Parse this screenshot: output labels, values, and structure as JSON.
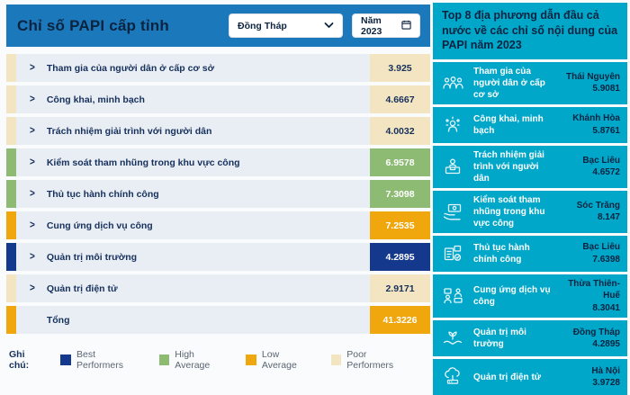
{
  "left_panel": {
    "title": "Chỉ số PAPI cấp tỉnh",
    "province_select": {
      "value": "Đồng Tháp"
    },
    "year_select": {
      "value": "Năm 2023"
    },
    "rows": [
      {
        "label": "Tham gia của người dân ở cấp cơ sở",
        "value": "3.925",
        "tier": "poor",
        "expandable": true
      },
      {
        "label": "Công khai, minh bạch",
        "value": "4.6667",
        "tier": "poor",
        "expandable": true
      },
      {
        "label": "Trách nhiệm giải trình với người dân",
        "value": "4.0032",
        "tier": "poor",
        "expandable": true
      },
      {
        "label": "Kiểm soát tham nhũng trong khu vực công",
        "value": "6.9578",
        "tier": "high",
        "expandable": true
      },
      {
        "label": "Thủ tục hành chính công",
        "value": "7.3098",
        "tier": "high",
        "expandable": true
      },
      {
        "label": "Cung ứng dịch vụ công",
        "value": "7.2535",
        "tier": "low",
        "expandable": true
      },
      {
        "label": "Quản trị môi trường",
        "value": "4.2895",
        "tier": "best",
        "expandable": true
      },
      {
        "label": "Quản trị điện tử",
        "value": "2.9171",
        "tier": "poor",
        "expandable": true
      },
      {
        "label": "Tổng",
        "value": "41.3226",
        "tier": "low",
        "expandable": false
      }
    ],
    "legend": {
      "label": "Ghi chú:",
      "items": [
        {
          "label": "Best Performers",
          "color": "#14388c"
        },
        {
          "label": "High Average",
          "color": "#8dbb73"
        },
        {
          "label": "Low Average",
          "color": "#f0a70e"
        },
        {
          "label": "Poor Performers",
          "color": "#f3e5c2"
        }
      ]
    }
  },
  "right_panel": {
    "title": "Top 8 địa phương dẫn đầu cả nước về các chỉ số nội dung của PAPI năm 2023",
    "items": [
      {
        "icon": "people-group-icon",
        "label": "Tham gia của người dân ở cấp cơ sở",
        "province": "Thái Nguyên",
        "value": "5.9081"
      },
      {
        "icon": "transparency-person-icon",
        "label": "Công khai, minh bạch",
        "province": "Khánh Hòa",
        "value": "5.8761"
      },
      {
        "icon": "accountability-desk-icon",
        "label": "Trách nhiệm giải trình với người dân",
        "province": "Bạc Liêu",
        "value": "4.6572"
      },
      {
        "icon": "hand-money-icon",
        "label": "Kiểm soát tham nhũng trong khu vực công",
        "province": "Sóc Trăng",
        "value": "8.147"
      },
      {
        "icon": "documents-check-icon",
        "label": "Thủ tục hành chính công",
        "province": "Bạc Liêu",
        "value": "7.6398"
      },
      {
        "icon": "public-services-icon",
        "label": "Cung ứng dịch vụ công",
        "province": "Thừa Thiên-Huế",
        "value": "8.3041"
      },
      {
        "icon": "hands-plant-icon",
        "label": "Quản trị môi trường",
        "province": "Đồng Tháp",
        "value": "4.2895"
      },
      {
        "icon": "cloud-server-icon",
        "label": "Quản trị điện tử",
        "province": "Hà Nội",
        "value": "3.9728"
      }
    ]
  },
  "colors": {
    "header_blue": "#1b78bb",
    "panel_cyan": "#00a7c9",
    "row_background": "#e9eef4",
    "dark_navy_text": "#0c2340",
    "best_performers": "#14388c",
    "high_average": "#8dbb73",
    "low_average": "#f0a70e",
    "poor_performers": "#f3e5c2"
  }
}
